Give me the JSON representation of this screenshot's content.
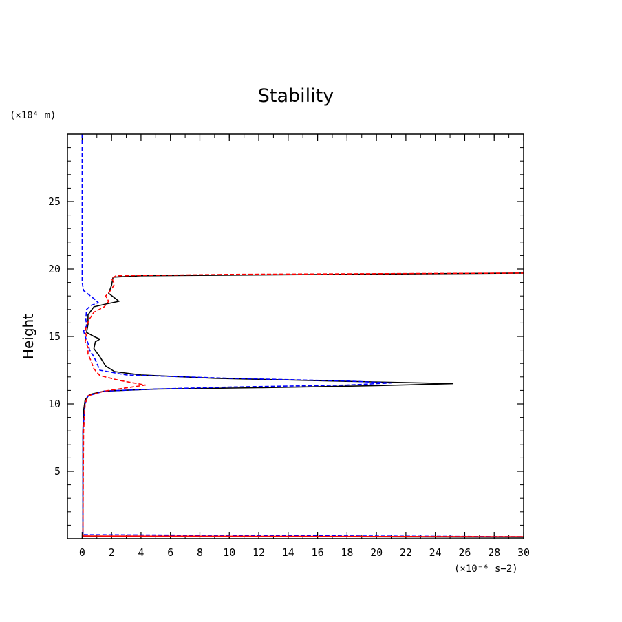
{
  "chart_data": {
    "type": "line",
    "title": "Stability",
    "xlabel": "",
    "ylabel": "Height",
    "x_unit_label": "(×10⁻⁶ s−2)",
    "y_unit_label": "(×10⁴ m)",
    "xlim": [
      -1,
      30
    ],
    "ylim": [
      0,
      30
    ],
    "xticks": [
      0,
      2,
      4,
      6,
      8,
      10,
      12,
      14,
      16,
      18,
      20,
      22,
      24,
      26,
      28,
      30
    ],
    "yticks": [
      5,
      10,
      15,
      20,
      25
    ],
    "grid": false,
    "legend": "none",
    "series": [
      {
        "color": "#000000",
        "dash": "solid",
        "points": [
          [
            0.0,
            0.0
          ],
          [
            0.05,
            0.2
          ],
          [
            30,
            0.1
          ],
          [
            0.05,
            0.2
          ],
          [
            0.05,
            8.0
          ],
          [
            0.1,
            9.5
          ],
          [
            0.2,
            10.3
          ],
          [
            0.5,
            10.7
          ],
          [
            1.5,
            10.95
          ],
          [
            5,
            11.1
          ],
          [
            12,
            11.2
          ],
          [
            20,
            11.35
          ],
          [
            25.2,
            11.5
          ],
          [
            17,
            11.7
          ],
          [
            9,
            11.9
          ],
          [
            4,
            12.15
          ],
          [
            2.2,
            12.4
          ],
          [
            1.6,
            12.8
          ],
          [
            1.2,
            13.5
          ],
          [
            0.8,
            14.1
          ],
          [
            0.9,
            14.6
          ],
          [
            1.2,
            14.8
          ],
          [
            0.8,
            15.0
          ],
          [
            0.3,
            15.3
          ],
          [
            0.4,
            15.9
          ],
          [
            0.4,
            16.6
          ],
          [
            0.8,
            17.2
          ],
          [
            1.6,
            17.4
          ],
          [
            2.5,
            17.6
          ],
          [
            1.8,
            18.2
          ],
          [
            2.0,
            18.8
          ],
          [
            2.1,
            19.4
          ],
          [
            4,
            19.5
          ],
          [
            30,
            19.7
          ]
        ]
      },
      {
        "color": "#0000ff",
        "dash": "dashed",
        "points": [
          [
            0.0,
            30.0
          ],
          [
            0.0,
            19.0
          ],
          [
            0.1,
            18.4
          ],
          [
            0.8,
            17.8
          ],
          [
            1.1,
            17.5
          ],
          [
            0.6,
            17.3
          ],
          [
            0.3,
            17.0
          ],
          [
            0.25,
            16.3
          ],
          [
            0.3,
            15.8
          ],
          [
            0.1,
            15.4
          ],
          [
            0.2,
            15.0
          ],
          [
            0.4,
            14.5
          ],
          [
            0.5,
            14.0
          ],
          [
            0.8,
            13.5
          ],
          [
            1.0,
            13.0
          ],
          [
            1.2,
            12.5
          ],
          [
            3,
            12.15
          ],
          [
            10,
            11.9
          ],
          [
            18,
            11.7
          ],
          [
            21,
            11.55
          ],
          [
            18,
            11.4
          ],
          [
            10,
            11.25
          ],
          [
            5,
            11.1
          ],
          [
            1.5,
            10.95
          ],
          [
            0.4,
            10.6
          ],
          [
            0.2,
            10.0
          ],
          [
            0.05,
            8.0
          ],
          [
            0.05,
            0.3
          ],
          [
            30,
            0.15
          ]
        ]
      },
      {
        "color": "#ff0000",
        "dash": "dashed",
        "points": [
          [
            0.05,
            0.2
          ],
          [
            30,
            0.15
          ],
          [
            0.05,
            0.2
          ],
          [
            0.1,
            8.0
          ],
          [
            0.2,
            10.0
          ],
          [
            0.4,
            10.6
          ],
          [
            1.5,
            10.95
          ],
          [
            4.3,
            11.4
          ],
          [
            2.5,
            11.75
          ],
          [
            1.2,
            12.1
          ],
          [
            0.8,
            12.6
          ],
          [
            0.6,
            13.2
          ],
          [
            0.4,
            13.7
          ],
          [
            0.4,
            14.2
          ],
          [
            0.2,
            14.6
          ],
          [
            0.3,
            15.0
          ],
          [
            0.2,
            15.4
          ],
          [
            0.3,
            15.8
          ],
          [
            0.5,
            16.3
          ],
          [
            0.8,
            16.8
          ],
          [
            1.5,
            17.2
          ],
          [
            1.8,
            17.6
          ],
          [
            1.6,
            18.0
          ],
          [
            2.0,
            18.5
          ],
          [
            2.2,
            18.9
          ],
          [
            2.0,
            19.3
          ],
          [
            2.3,
            19.5
          ],
          [
            10,
            19.6
          ],
          [
            30,
            19.7
          ]
        ]
      }
    ]
  }
}
